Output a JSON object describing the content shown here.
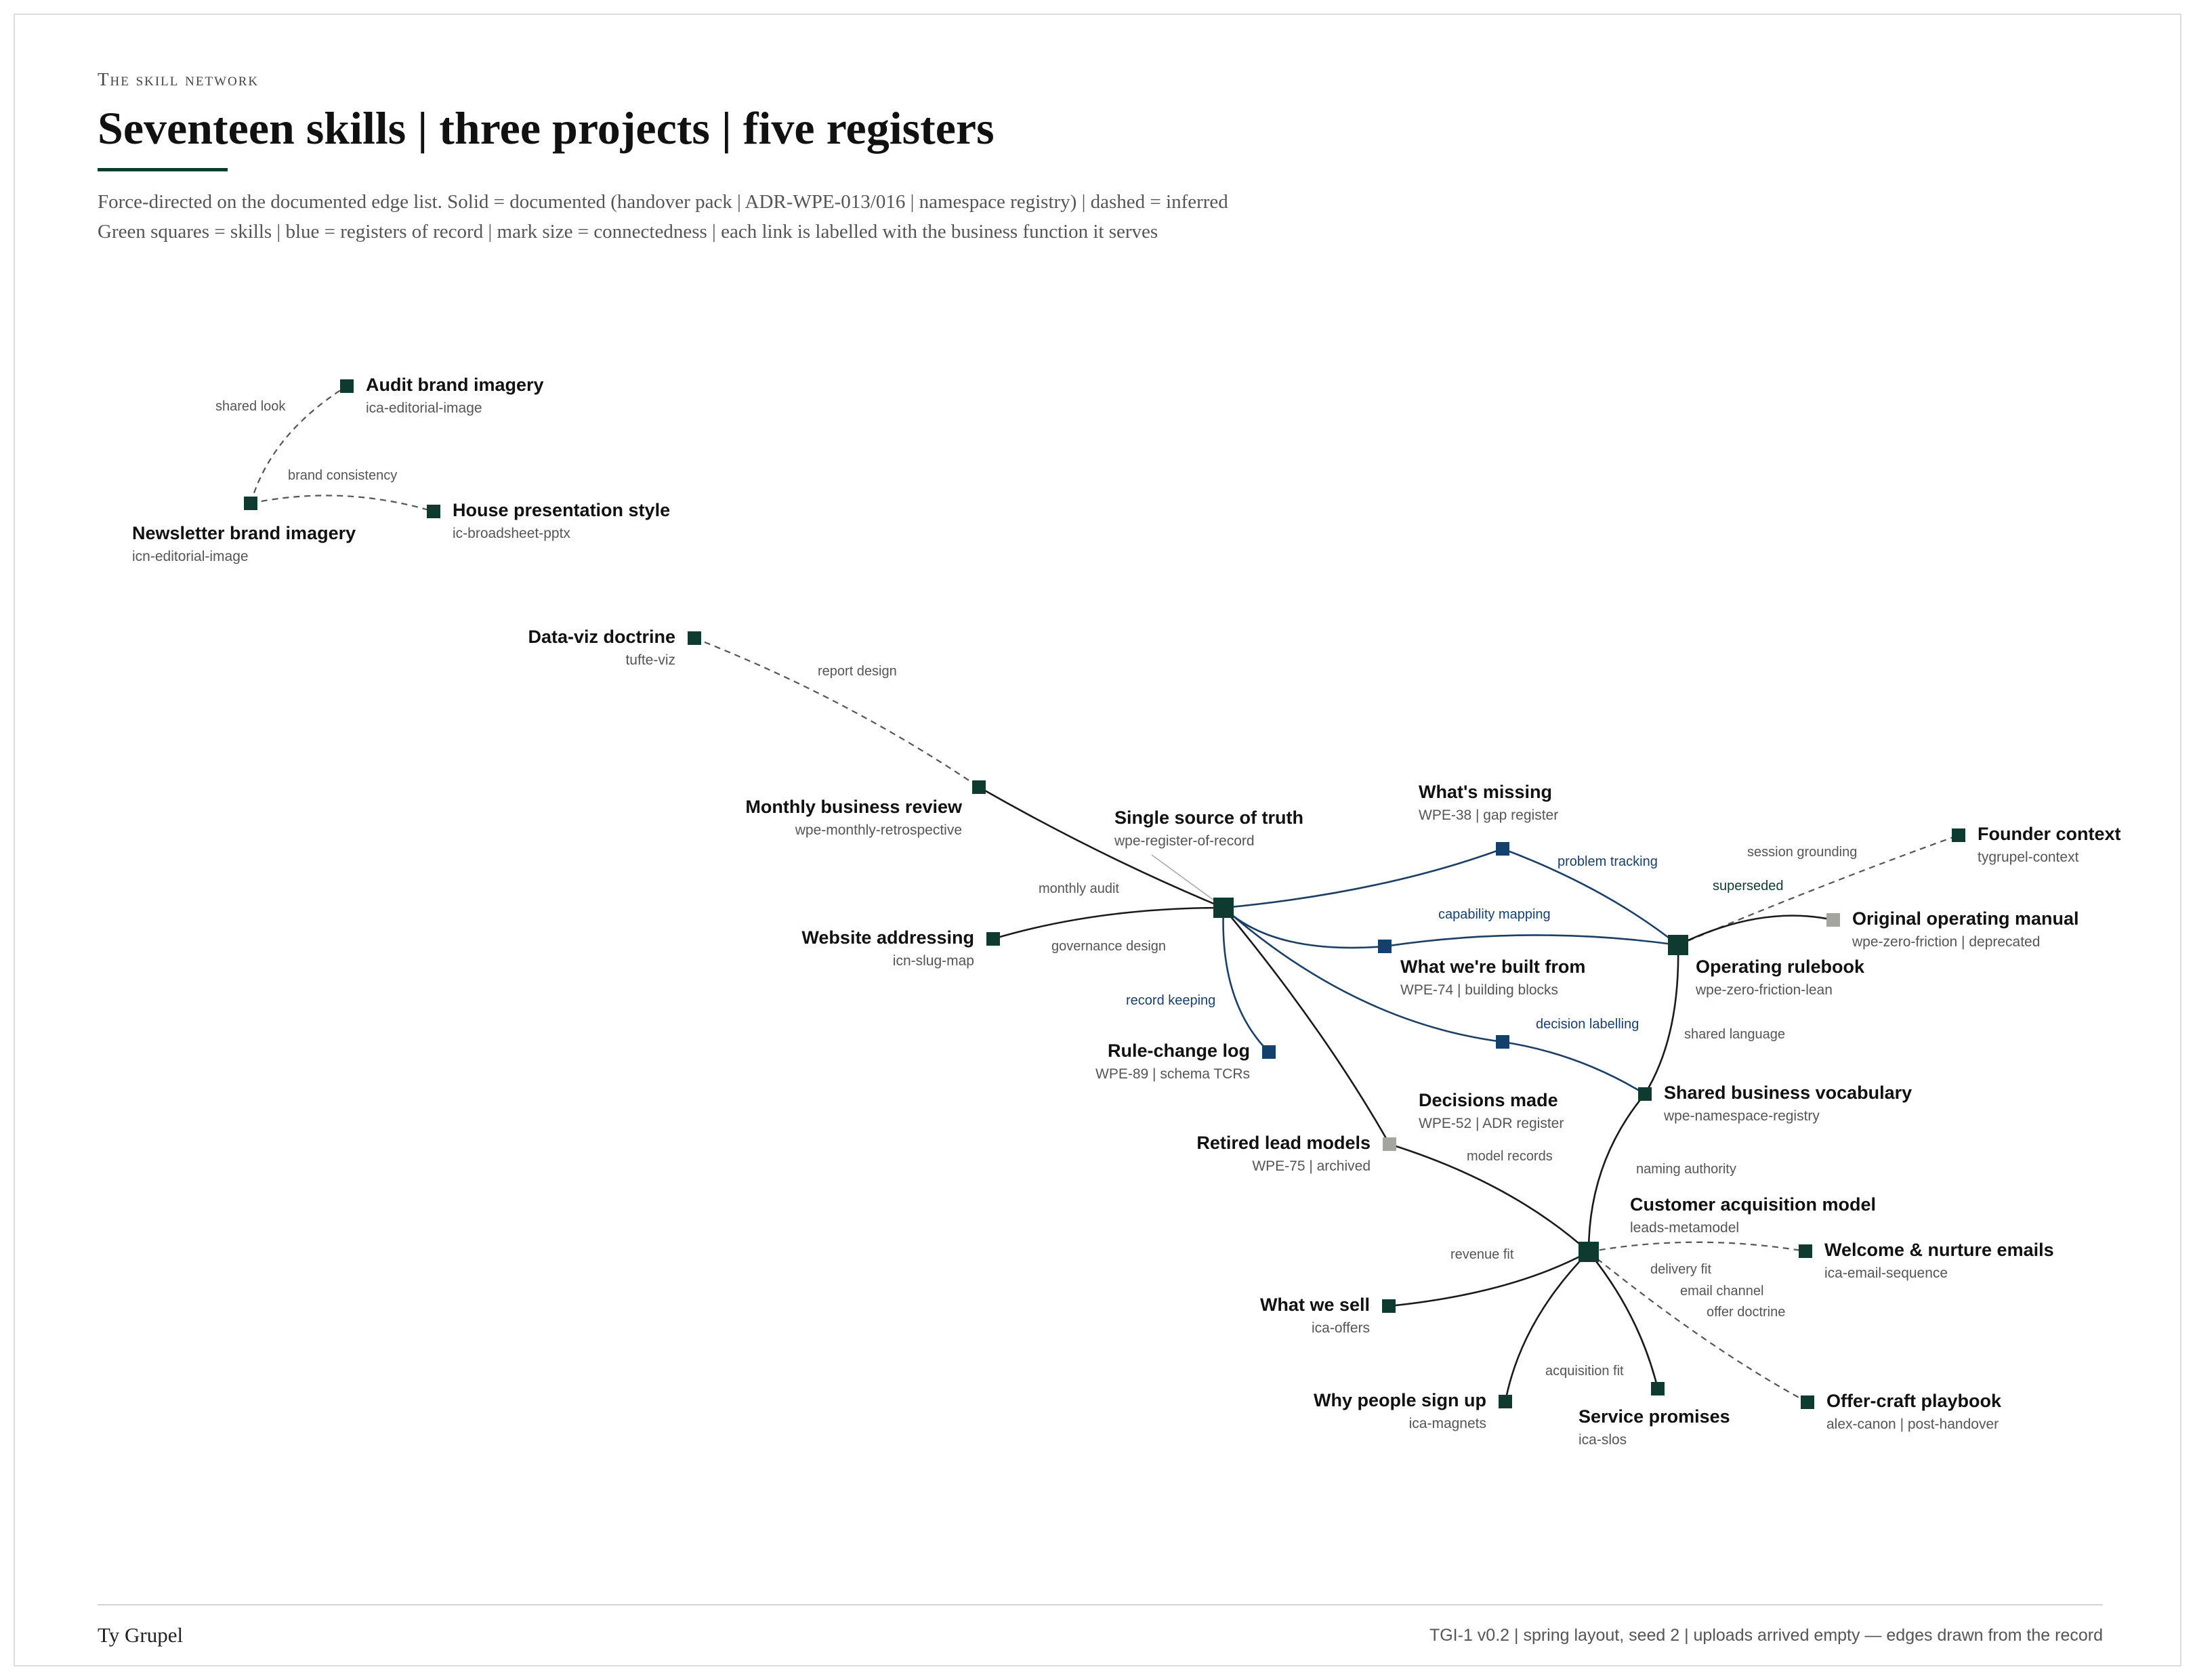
{
  "header": {
    "kicker": "The skill network",
    "title": "Seventeen skills | three projects | five registers",
    "subtitle_1": "Force-directed on the documented edge list. Solid = documented (handover pack | ADR-WPE-013/016 | namespace registry) | dashed = inferred",
    "subtitle_2": "Green squares = skills | blue = registers of record | mark size = connectedness | each link is labelled with the business function it serves"
  },
  "colors": {
    "skill": "#0e3a2f",
    "register": "#15406b",
    "deprecated": "#a5a5a0",
    "edge_documented_skill": "#1a1a1a",
    "edge_documented_register": "#1c3f63",
    "edge_inferred": "#555555"
  },
  "graph": {
    "nodes": [
      {
        "id": "audit-brand",
        "name": "Audit brand imagery",
        "sub": "ica-editorial-image",
        "kind": "skill"
      },
      {
        "id": "newsletter-brand",
        "name": "Newsletter brand imagery",
        "sub": "icn-editorial-image",
        "kind": "skill"
      },
      {
        "id": "house-style",
        "name": "House presentation style",
        "sub": "ic-broadsheet-pptx",
        "kind": "skill"
      },
      {
        "id": "dataviz",
        "name": "Data-viz doctrine",
        "sub": "tufte-viz",
        "kind": "skill"
      },
      {
        "id": "monthly-review",
        "name": "Monthly business review",
        "sub": "wpe-monthly-retrospective",
        "kind": "skill"
      },
      {
        "id": "sst",
        "name": "Single source of truth",
        "sub": "wpe-register-of-record",
        "kind": "skill",
        "size": "large"
      },
      {
        "id": "website",
        "name": "Website addressing",
        "sub": "icn-slug-map",
        "kind": "skill"
      },
      {
        "id": "rule-change",
        "name": "Rule-change log",
        "sub": "WPE-89 | schema TCRs",
        "kind": "register"
      },
      {
        "id": "retired",
        "name": "Retired lead models",
        "sub": "WPE-75 | archived",
        "kind": "deprecated"
      },
      {
        "id": "missing",
        "name": "What's missing",
        "sub": "WPE-38 | gap register",
        "kind": "register"
      },
      {
        "id": "built-from",
        "name": "What we're built from",
        "sub": "WPE-74 | building blocks",
        "kind": "register"
      },
      {
        "id": "decisions",
        "name": "Decisions made",
        "sub": "WPE-52 | ADR register",
        "kind": "register"
      },
      {
        "id": "rulebook",
        "name": "Operating rulebook",
        "sub": "wpe-zero-friction-lean",
        "kind": "skill",
        "size": "large"
      },
      {
        "id": "founder",
        "name": "Founder context",
        "sub": "tygrupel-context",
        "kind": "skill"
      },
      {
        "id": "original-manual",
        "name": "Original operating manual",
        "sub": "wpe-zero-friction | deprecated",
        "kind": "deprecated"
      },
      {
        "id": "vocab",
        "name": "Shared business vocabulary",
        "sub": "wpe-namespace-registry",
        "kind": "skill"
      },
      {
        "id": "cam",
        "name": "Customer acquisition model",
        "sub": "leads-metamodel",
        "kind": "skill",
        "size": "large"
      },
      {
        "id": "welcome",
        "name": "Welcome & nurture emails",
        "sub": "ica-email-sequence",
        "kind": "skill"
      },
      {
        "id": "what-sell",
        "name": "What we sell",
        "sub": "ica-offers",
        "kind": "skill"
      },
      {
        "id": "why-signup",
        "name": "Why people sign up",
        "sub": "ica-magnets",
        "kind": "skill"
      },
      {
        "id": "service",
        "name": "Service promises",
        "sub": "ica-slos",
        "kind": "skill"
      },
      {
        "id": "offer-craft",
        "name": "Offer-craft playbook",
        "sub": "alex-canon | post-handover",
        "kind": "skill"
      }
    ],
    "edges": [
      {
        "from": "newsletter-brand",
        "to": "audit-brand",
        "label": "shared look",
        "status": "inferred"
      },
      {
        "from": "newsletter-brand",
        "to": "house-style",
        "label": "brand consistency",
        "status": "inferred"
      },
      {
        "from": "dataviz",
        "to": "monthly-review",
        "label": "report design",
        "status": "inferred"
      },
      {
        "from": "monthly-review",
        "to": "sst",
        "label": "monthly audit",
        "status": "documented"
      },
      {
        "from": "website",
        "to": "sst",
        "label": "governance design",
        "status": "documented"
      },
      {
        "from": "sst",
        "to": "rule-change",
        "label": "record keeping",
        "status": "documented"
      },
      {
        "from": "sst",
        "to": "retired",
        "label": "",
        "status": "documented"
      },
      {
        "from": "sst",
        "to": "missing",
        "label": "",
        "status": "documented"
      },
      {
        "from": "missing",
        "to": "rulebook",
        "label": "problem tracking",
        "status": "documented"
      },
      {
        "from": "sst",
        "to": "built-from",
        "label": "",
        "status": "documented"
      },
      {
        "from": "built-from",
        "to": "rulebook",
        "label": "capability mapping",
        "status": "documented"
      },
      {
        "from": "sst",
        "to": "decisions",
        "label": "",
        "status": "documented"
      },
      {
        "from": "decisions",
        "to": "vocab",
        "label": "decision labelling",
        "status": "documented"
      },
      {
        "from": "rulebook",
        "to": "founder",
        "label": "session grounding",
        "status": "inferred"
      },
      {
        "from": "rulebook",
        "to": "original-manual",
        "label": "superseded",
        "status": "documented"
      },
      {
        "from": "rulebook",
        "to": "vocab",
        "label": "shared language",
        "status": "documented"
      },
      {
        "from": "vocab",
        "to": "cam",
        "label": "naming authority",
        "status": "documented"
      },
      {
        "from": "retired",
        "to": "cam",
        "label": "model records",
        "status": "documented"
      },
      {
        "from": "what-sell",
        "to": "cam",
        "label": "revenue fit",
        "status": "documented"
      },
      {
        "from": "cam",
        "to": "welcome",
        "label": "email channel",
        "status": "inferred"
      },
      {
        "from": "cam",
        "to": "service",
        "label": "delivery fit",
        "status": "documented"
      },
      {
        "from": "cam",
        "to": "offer-craft",
        "label": "offer doctrine",
        "status": "inferred"
      },
      {
        "from": "cam",
        "to": "why-signup",
        "label": "acquisition fit",
        "status": "documented"
      }
    ]
  },
  "footer": {
    "author": "Ty Grupel",
    "colophon": "TGI-1 v0.2 | spring layout, seed 2 | uploads arrived empty — edges drawn from the record"
  }
}
